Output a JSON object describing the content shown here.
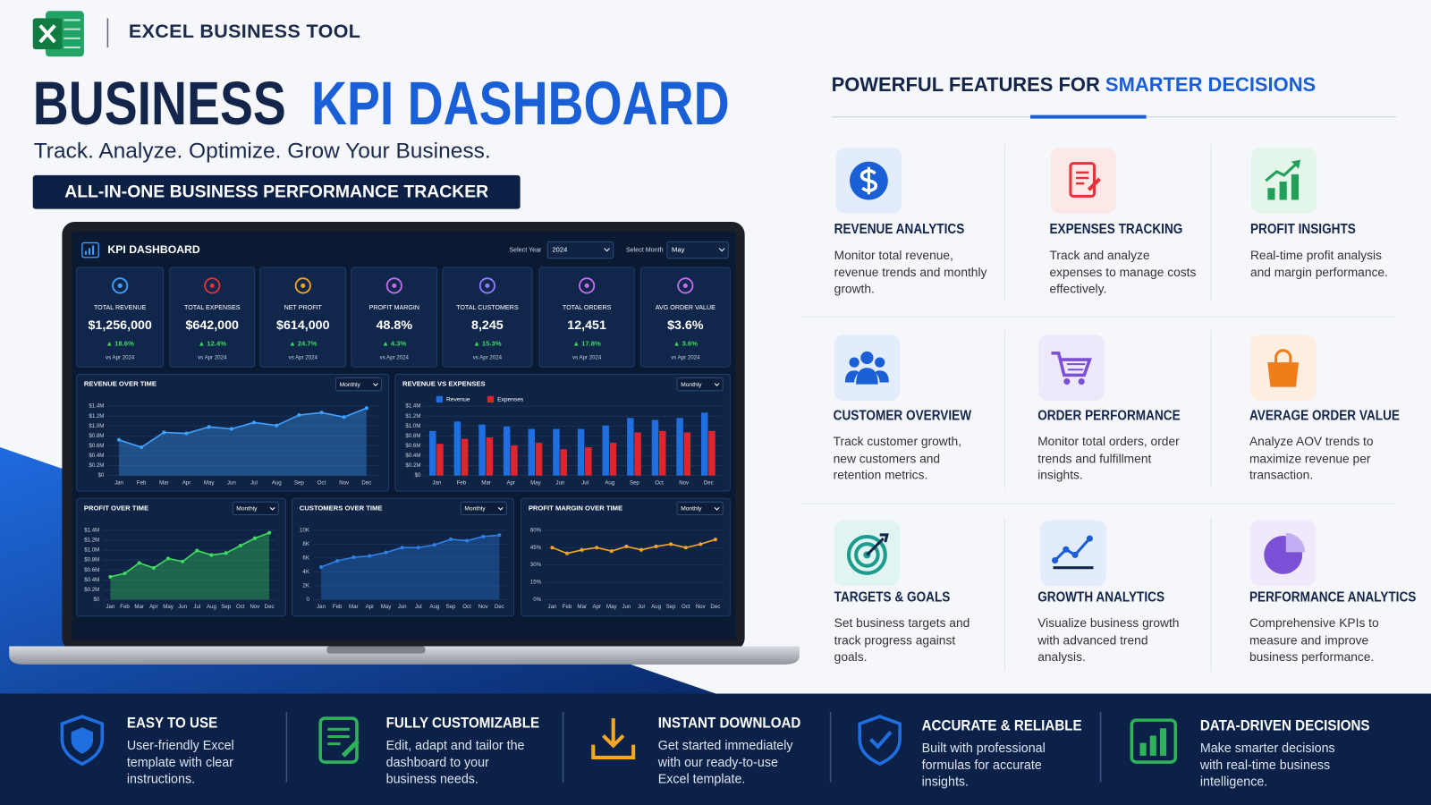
{
  "header": {
    "brand": "EXCEL BUSINESS TOOL",
    "title_1": "BUSINESS",
    "title_2": "KPI DASHBOARD",
    "tagline": "Track. Analyze. Optimize. Grow Your Business.",
    "banner": "ALL-IN-ONE BUSINESS PERFORMANCE TRACKER"
  },
  "dashboard": {
    "title": "KPI DASHBOARD",
    "year_label": "Select Year",
    "year": "2024",
    "month_label": "Select Month",
    "month": "May",
    "kpis": [
      {
        "name": "TOTAL REVENUE",
        "value": "$1,256,000",
        "change": "▲ 18.6%",
        "compare": "vs Apr 2024"
      },
      {
        "name": "TOTAL EXPENSES",
        "value": "$642,000",
        "change": "▲ 12.4%",
        "compare": "vs Apr 2024"
      },
      {
        "name": "NET PROFIT",
        "value": "$614,000",
        "change": "▲ 24.7%",
        "compare": "vs Apr 2024"
      },
      {
        "name": "PROFIT MARGIN",
        "value": "48.8%",
        "change": "▲ 4.3%",
        "compare": "vs Apr 2024"
      },
      {
        "name": "TOTAL CUSTOMERS",
        "value": "8,245",
        "change": "▲ 15.3%",
        "compare": "vs Apr 2024"
      },
      {
        "name": "TOTAL ORDERS",
        "value": "12,451",
        "change": "▲ 17.8%",
        "compare": "vs Apr 2024"
      },
      {
        "name": "AVG ORDER VALUE",
        "value": "$3.6%",
        "change": "▲ 3.6%",
        "compare": "vs Apr 2024"
      }
    ]
  },
  "chart_data": [
    {
      "type": "area",
      "title": "REVENUE OVER TIME",
      "period": "Monthly",
      "color": "#3fa0ff",
      "categories": [
        "Jan",
        "Feb",
        "Mar",
        "Apr",
        "May",
        "Jun",
        "Jul",
        "Aug",
        "Sep",
        "Oct",
        "Nov",
        "Dec"
      ],
      "values": [
        0.72,
        0.57,
        0.87,
        0.85,
        0.98,
        0.94,
        1.07,
        1.01,
        1.22,
        1.27,
        1.18,
        1.36
      ],
      "ylim": [
        0,
        1.4
      ],
      "yticks": [
        {
          "value": 0,
          "label": "$0"
        },
        {
          "value": 0.2,
          "label": "$0.2M"
        },
        {
          "value": 0.4,
          "label": "$0.4M"
        },
        {
          "value": 0.6,
          "label": "$0.6M"
        },
        {
          "value": 0.8,
          "label": "$0.8M"
        },
        {
          "value": 1.0,
          "label": "$1.0M"
        },
        {
          "value": 1.2,
          "label": "$1.2M"
        },
        {
          "value": 1.4,
          "label": "$1.4M"
        }
      ]
    },
    {
      "type": "bar",
      "title": "REVENUE VS EXPENSES",
      "period": "Monthly",
      "categories": [
        "Jan",
        "Feb",
        "Mar",
        "Apr",
        "May",
        "Jun",
        "Jul",
        "Aug",
        "Sep",
        "Oct",
        "Nov",
        "Dec"
      ],
      "series": [
        {
          "name": "Revenue",
          "color": "#1f6fe0",
          "values": [
            0.9,
            1.09,
            1.03,
            0.99,
            0.94,
            0.94,
            0.94,
            1.01,
            1.16,
            1.12,
            1.16,
            1.27
          ]
        },
        {
          "name": "Expenses",
          "color": "#e0242e",
          "values": [
            0.64,
            0.74,
            0.77,
            0.61,
            0.66,
            0.53,
            0.57,
            0.66,
            0.87,
            0.9,
            0.87,
            0.9
          ]
        }
      ],
      "ylim": [
        0,
        1.4
      ],
      "yticks": [
        {
          "value": 0,
          "label": "$0"
        },
        {
          "value": 0.2,
          "label": "$0.2M"
        },
        {
          "value": 0.4,
          "label": "$0.4M"
        },
        {
          "value": 0.6,
          "label": "$0.6M"
        },
        {
          "value": 0.8,
          "label": "$0.8M"
        },
        {
          "value": 1.0,
          "label": "$1.0M"
        },
        {
          "value": 1.2,
          "label": "$1.2M"
        },
        {
          "value": 1.4,
          "label": "$1.4M"
        }
      ]
    },
    {
      "type": "area",
      "title": "PROFIT OVER TIME",
      "period": "Monthly",
      "color": "#3ddc5f",
      "categories": [
        "Jan",
        "Feb",
        "Mar",
        "Apr",
        "May",
        "Jun",
        "Jul",
        "Aug",
        "Sep",
        "Oct",
        "Nov",
        "Dec"
      ],
      "values": [
        0.46,
        0.53,
        0.74,
        0.64,
        0.83,
        0.77,
        0.99,
        0.9,
        0.94,
        1.09,
        1.24,
        1.35
      ],
      "ylim": [
        0,
        1.4
      ],
      "yticks": [
        {
          "value": 0,
          "label": "$0"
        },
        {
          "value": 0.2,
          "label": "$0.2M"
        },
        {
          "value": 0.4,
          "label": "$0.4M"
        },
        {
          "value": 0.6,
          "label": "$0.6M"
        },
        {
          "value": 0.8,
          "label": "$0.8M"
        },
        {
          "value": 1.0,
          "label": "$1.0M"
        },
        {
          "value": 1.2,
          "label": "$1.2M"
        },
        {
          "value": 1.4,
          "label": "$1.4M"
        }
      ]
    },
    {
      "type": "area",
      "title": "CUSTOMERS OVER TIME",
      "period": "Monthly",
      "color": "#2f7fe6",
      "categories": [
        "Jan",
        "Feb",
        "Mar",
        "Apr",
        "May",
        "Jun",
        "Jul",
        "Aug",
        "Sep",
        "Oct",
        "Nov",
        "Dec"
      ],
      "values": [
        4.7,
        5.6,
        6.1,
        6.3,
        6.8,
        7.5,
        7.5,
        7.9,
        8.7,
        8.5,
        9.1,
        9.3
      ],
      "ylim": [
        0,
        10
      ],
      "yticks": [
        0,
        {
          "value": 2,
          "label": "2K"
        },
        {
          "value": 4,
          "label": "4K"
        },
        {
          "value": 6,
          "label": "6K"
        },
        {
          "value": 8,
          "label": "8K"
        },
        {
          "value": 10,
          "label": "10K"
        }
      ]
    },
    {
      "type": "line",
      "title": "PROFIT MARGIN OVER TIME",
      "period": "Monthly",
      "color": "#f5a623",
      "categories": [
        "Jan",
        "Feb",
        "Mar",
        "Apr",
        "May",
        "Jun",
        "Jul",
        "Aug",
        "Sep",
        "Oct",
        "Nov",
        "Dec"
      ],
      "values": [
        45,
        40,
        43,
        45,
        42,
        46,
        43,
        46,
        48,
        45,
        48,
        52
      ],
      "ylim": [
        0,
        60
      ],
      "yticks": [
        {
          "value": 0,
          "label": "0%"
        },
        {
          "value": 15,
          "label": "15%"
        },
        {
          "value": 30,
          "label": "30%"
        },
        {
          "value": 45,
          "label": "45%"
        },
        {
          "value": 60,
          "label": "60%"
        }
      ]
    }
  ],
  "features": {
    "heading_1": "POWERFUL FEATURES FOR",
    "heading_2": "SMARTER DECISIONS",
    "items": [
      {
        "title": "REVENUE ANALYTICS",
        "text": "Monitor total revenue, revenue trends and monthly growth."
      },
      {
        "title": "EXPENSES TRACKING",
        "text": "Track and analyze expenses to manage costs effectively."
      },
      {
        "title": "PROFIT INSIGHTS",
        "text": "Real-time profit analysis and margin performance."
      },
      {
        "title": "CUSTOMER OVERVIEW",
        "text": "Track customer growth, new customers and retention metrics."
      },
      {
        "title": "ORDER PERFORMANCE",
        "text": "Monitor total orders, order trends and fulfillment insights."
      },
      {
        "title": "AVERAGE ORDER VALUE",
        "text": "Analyze AOV trends to maximize revenue per transaction."
      },
      {
        "title": "TARGETS & GOALS",
        "text": "Set business targets and track progress against goals."
      },
      {
        "title": "GROWTH ANALYTICS",
        "text": "Visualize business growth with advanced trend analysis."
      },
      {
        "title": "PERFORMANCE ANALYTICS",
        "text": "Comprehensive KPIs to measure and improve business performance."
      }
    ]
  },
  "benefits": [
    {
      "title": "EASY TO USE",
      "text": "User-friendly Excel template with clear instructions."
    },
    {
      "title": "FULLY CUSTOMIZABLE",
      "text": "Edit, adapt and tailor the dashboard to your business needs."
    },
    {
      "title": "INSTANT DOWNLOAD",
      "text": "Get started immediately with our ready-to-use Excel template."
    },
    {
      "title": "ACCURATE & RELIABLE",
      "text": "Built with professional formulas for accurate insights."
    },
    {
      "title": "DATA-DRIVEN DECISIONS",
      "text": "Make smarter decisions with real-time business intelligence."
    }
  ]
}
